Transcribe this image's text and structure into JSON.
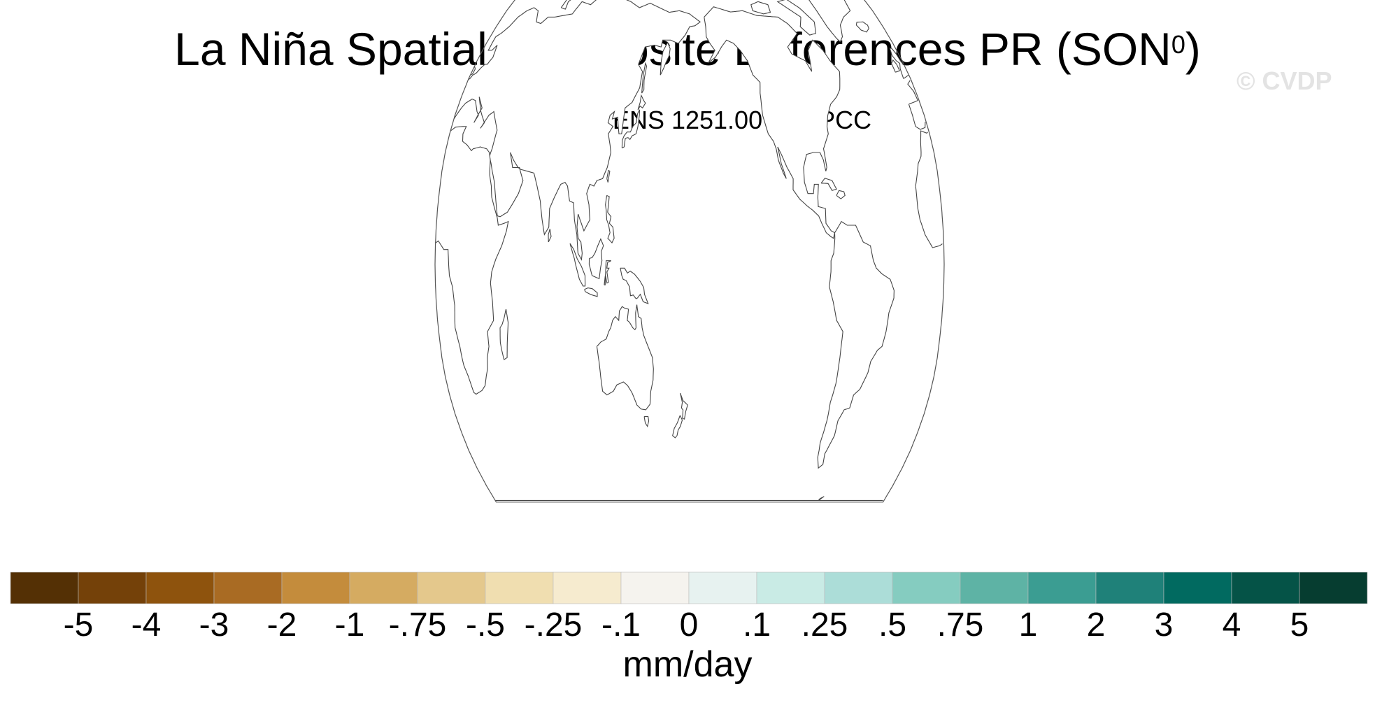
{
  "title": {
    "main": "La Niña Spatial Composite Differences PR (SON",
    "superscript": "0",
    "close": ")"
  },
  "watermark": "© CVDP",
  "subtitle": "CESM2-LENS 1251.007 - GPCC",
  "map": {
    "projection": "robinson",
    "central_longitude": 180,
    "latitude_range": [
      -65,
      90
    ],
    "coastline_color": "#444444",
    "fill_color": "#ffffff"
  },
  "colorbar": {
    "units": "mm/day",
    "labels": [
      "-5",
      "-4",
      "-3",
      "-2",
      "-1",
      "-.75",
      "-.5",
      "-.25",
      "-.1",
      "0",
      ".1",
      ".25",
      ".5",
      ".75",
      "1",
      "2",
      "3",
      "4",
      "5"
    ],
    "colors": [
      "#543005",
      "#744109",
      "#8e530d",
      "#a96b23",
      "#c48c3c",
      "#d5ab61",
      "#e4c88c",
      "#f0deb0",
      "#f6ebcf",
      "#f5f3ee",
      "#e7f2f0",
      "#c9ebe5",
      "#acddd8",
      "#85ccc0",
      "#5eb3a5",
      "#3b9d92",
      "#1f8179",
      "#016a60",
      "#055347",
      "#063d30"
    ]
  }
}
